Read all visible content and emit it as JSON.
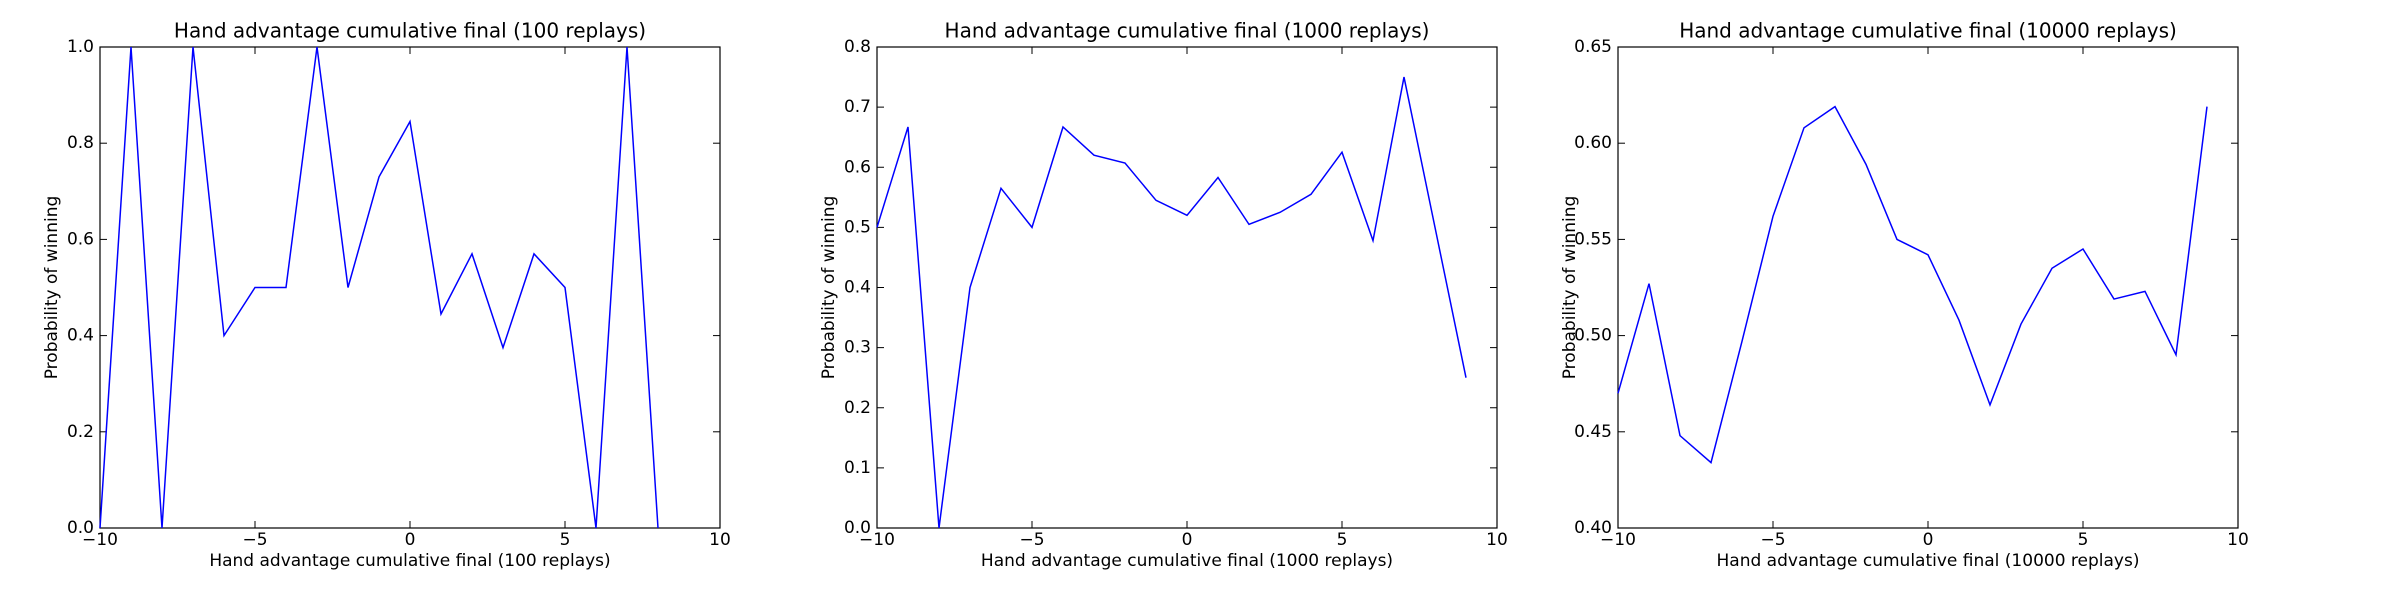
{
  "chart_data": [
    {
      "type": "line",
      "title": "Hand advantage cumulative final (100 replays)",
      "xlabel": "Hand advantage cumulative final (100 replays)",
      "ylabel": "Probability of winning",
      "x": [
        -10,
        -9,
        -8,
        -7,
        -6,
        -5,
        -4,
        -3,
        -2,
        -1,
        0,
        1,
        2,
        3,
        4,
        5,
        6,
        7,
        8
      ],
      "series": [
        {
          "color": "#0000ff",
          "values": [
            0,
            1.0,
            0,
            1.0,
            0.4,
            0.5,
            0.5,
            1.0,
            0.5,
            0.73,
            0.845,
            0.445,
            0.57,
            0.375,
            0.57,
            0.5,
            0,
            1.0,
            0
          ]
        }
      ],
      "xlim": [
        -10,
        10
      ],
      "xticks": [
        {
          "value": -10,
          "label": "−10"
        },
        {
          "value": -5,
          "label": "−5"
        },
        0,
        5,
        10
      ],
      "ylim": [
        0,
        1
      ],
      "yticks": [
        {
          "value": 0,
          "label": "0.0"
        },
        0.2,
        0.4,
        0.6,
        0.8,
        {
          "value": 1,
          "label": "1.0"
        }
      ]
    },
    {
      "type": "line",
      "title": "Hand advantage cumulative final (1000 replays)",
      "xlabel": "Hand advantage cumulative final (1000 replays)",
      "ylabel": "Probability of winning",
      "x": [
        -10,
        -9,
        -8,
        -7,
        -6,
        -5,
        -4,
        -3,
        -2,
        -1,
        0,
        1,
        2,
        3,
        4,
        5,
        6,
        7,
        8,
        9
      ],
      "series": [
        {
          "color": "#0000ff",
          "values": [
            0.5,
            0.667,
            0,
            0.4,
            0.565,
            0.5,
            0.667,
            0.62,
            0.607,
            0.545,
            0.52,
            0.583,
            0.505,
            0.525,
            0.555,
            0.625,
            0.478,
            0.75,
            0.5,
            0.25
          ]
        }
      ],
      "xlim": [
        -10,
        10
      ],
      "xticks": [
        {
          "value": -10,
          "label": "−10"
        },
        {
          "value": -5,
          "label": "−5"
        },
        0,
        5,
        10
      ],
      "ylim": [
        0,
        0.8
      ],
      "yticks": [
        {
          "value": 0,
          "label": "0.0"
        },
        0.1,
        0.2,
        0.3,
        0.4,
        0.5,
        0.6,
        0.7,
        0.8
      ]
    },
    {
      "type": "line",
      "title": "Hand advantage cumulative final (10000 replays)",
      "xlabel": "Hand advantage cumulative final (10000 replays)",
      "ylabel": "Probability of winning",
      "x": [
        -10,
        -9,
        -8,
        -7,
        -6,
        -5,
        -4,
        -3,
        -2,
        -1,
        0,
        1,
        2,
        3,
        4,
        5,
        6,
        7,
        8,
        9
      ],
      "series": [
        {
          "color": "#0000ff",
          "values": [
            0.47,
            0.527,
            0.448,
            0.434,
            0.497,
            0.562,
            0.608,
            0.619,
            0.589,
            0.55,
            0.542,
            0.508,
            0.464,
            0.506,
            0.535,
            0.545,
            0.519,
            0.523,
            0.49,
            0.619
          ]
        }
      ],
      "xlim": [
        -10,
        10
      ],
      "xticks": [
        {
          "value": -10,
          "label": "−10"
        },
        {
          "value": -5,
          "label": "−5"
        },
        0,
        5,
        10
      ],
      "ylim": [
        0.4,
        0.65
      ],
      "yticks": [
        {
          "value": 0.4,
          "label": "0.40"
        },
        0.45,
        {
          "value": 0.5,
          "label": "0.50"
        },
        0.55,
        {
          "value": 0.6,
          "label": "0.60"
        },
        0.65
      ]
    }
  ]
}
